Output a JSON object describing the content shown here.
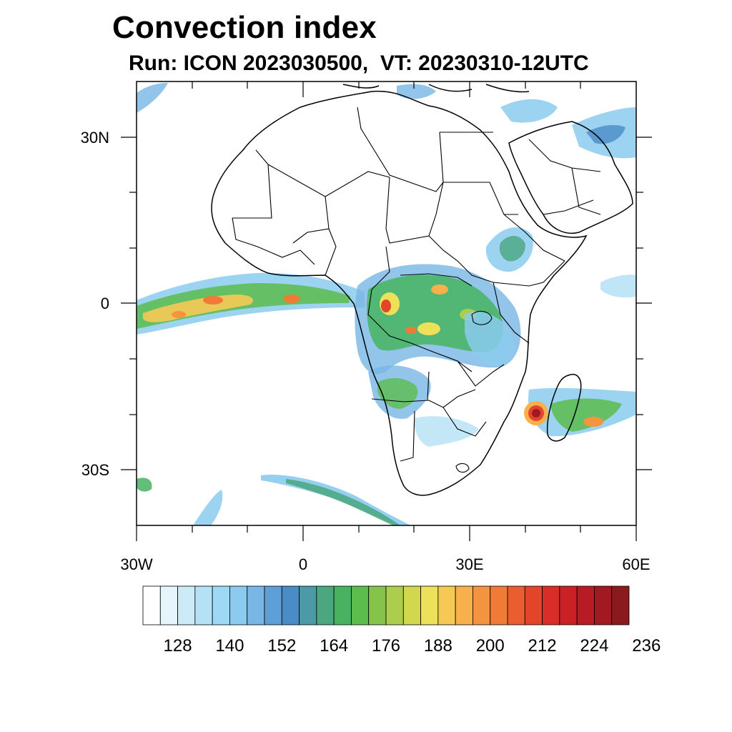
{
  "title": "Convection index",
  "subtitle": "Run: ICON 2023030500,  VT: 20230310-12UTC",
  "map": {
    "projection": "cylindrical-equidistant",
    "region": "Africa",
    "lon_range": [
      -30,
      60
    ],
    "lat_range": [
      -40,
      40
    ],
    "x_tick_labels": [
      "30W",
      "0",
      "30E",
      "60E"
    ],
    "y_tick_labels": [
      "30N",
      "0",
      "30S"
    ],
    "features": [
      "country borders",
      "coastlines",
      "filled convection index contours"
    ]
  },
  "colorbar": {
    "labels": [
      "128",
      "140",
      "152",
      "164",
      "176",
      "188",
      "200",
      "212",
      "224",
      "236"
    ],
    "colors": [
      "#ffffff",
      "#e6f4fc",
      "#cdeaf8",
      "#b5e1f6",
      "#9dd8f4",
      "#8bcbef",
      "#78b6e6",
      "#5f9fd8",
      "#4a8cc6",
      "#4a9ba5",
      "#4aa77f",
      "#47b360",
      "#5cbc4c",
      "#86c34b",
      "#acce4c",
      "#d1d84e",
      "#ede15a",
      "#f6c955",
      "#f7b04b",
      "#f59440",
      "#f17a36",
      "#ea5d2e",
      "#e2452a",
      "#d92e28",
      "#c92126",
      "#b71c25",
      "#a11a22",
      "#8b1a1e"
    ]
  }
}
